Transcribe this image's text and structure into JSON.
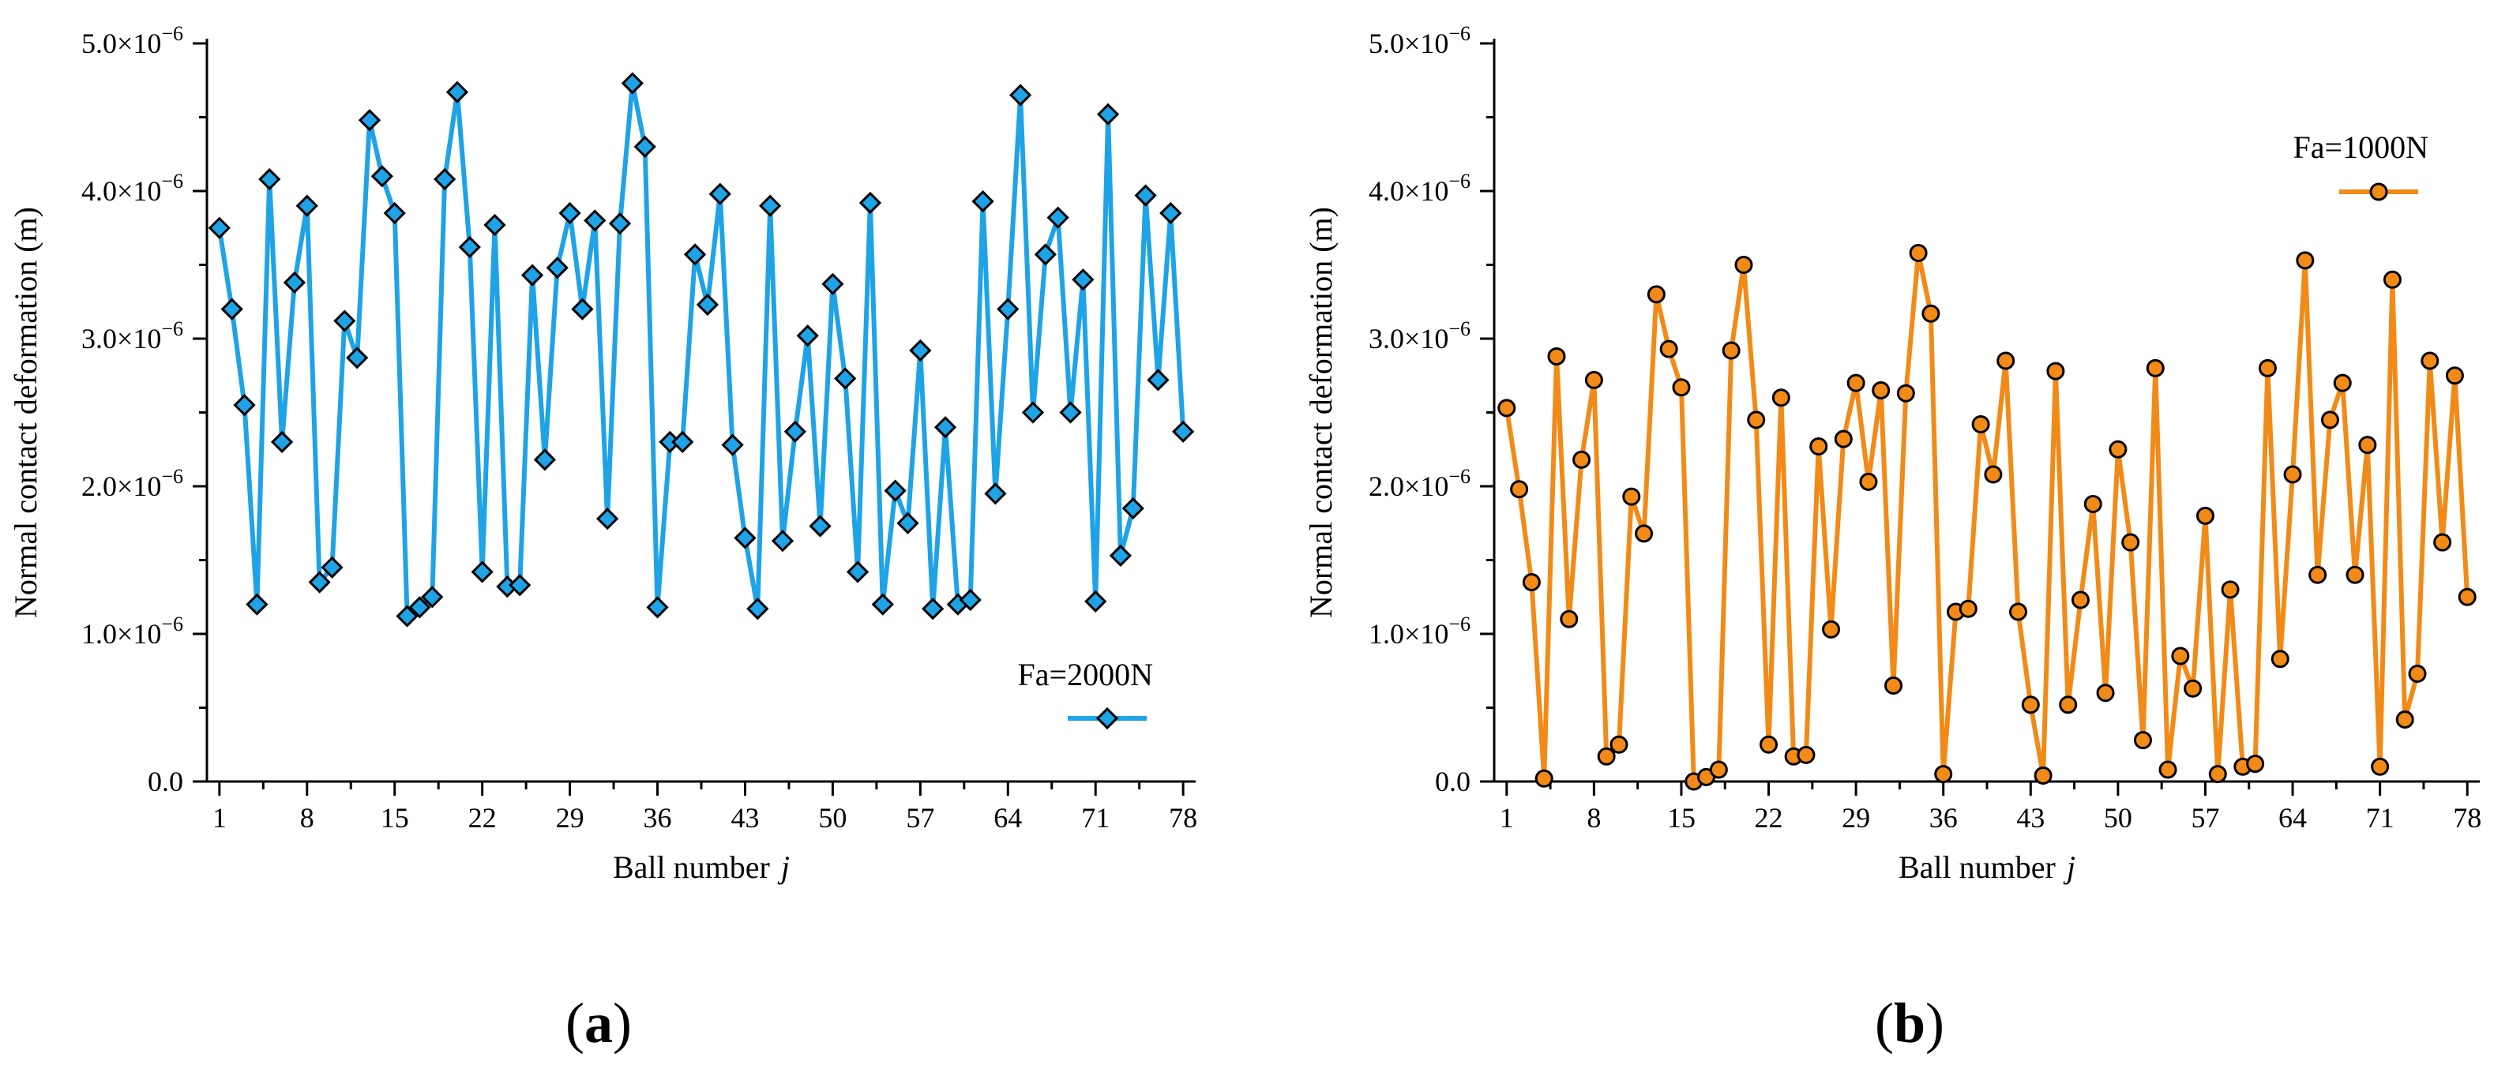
{
  "chart_data": [
    {
      "type": "line",
      "panel_label": "a",
      "xlabel": "Ball number",
      "xlabel_var": "j",
      "ylabel": "Normal contact deformation (m)",
      "xlim": [
        0,
        79
      ],
      "ylim": [
        0,
        5e-06
      ],
      "xticks": [
        1,
        8,
        15,
        22,
        29,
        36,
        43,
        50,
        57,
        64,
        71,
        78
      ],
      "yticks": [
        {
          "value": 0,
          "mantissa": "0.0",
          "exp": ""
        },
        {
          "value": 1e-06,
          "mantissa": "1.0×10",
          "exp": "−6"
        },
        {
          "value": 2e-06,
          "mantissa": "2.0×10",
          "exp": "−6"
        },
        {
          "value": 3e-06,
          "mantissa": "3.0×10",
          "exp": "−6"
        },
        {
          "value": 4e-06,
          "mantissa": "4.0×10",
          "exp": "−6"
        },
        {
          "value": 5e-06,
          "mantissa": "5.0×10",
          "exp": "−6"
        }
      ],
      "legend_position": "bottom-right",
      "grid": false,
      "series": [
        {
          "name": "Fa=2000N",
          "color": "#1ea3e6",
          "marker": "diamond",
          "x": [
            1,
            2,
            3,
            4,
            5,
            6,
            7,
            8,
            9,
            10,
            11,
            12,
            13,
            14,
            15,
            16,
            17,
            18,
            19,
            20,
            21,
            22,
            23,
            24,
            25,
            26,
            27,
            28,
            29,
            30,
            31,
            32,
            33,
            34,
            35,
            36,
            37,
            38,
            39,
            40,
            41,
            42,
            43,
            44,
            45,
            46,
            47,
            48,
            49,
            50,
            51,
            52,
            53,
            54,
            55,
            56,
            57,
            58,
            59,
            60,
            61,
            62,
            63,
            64,
            65,
            66,
            67,
            68,
            69,
            70,
            71,
            72,
            73,
            74,
            75,
            76,
            77,
            78
          ],
          "values": [
            3.75e-06,
            3.2e-06,
            2.55e-06,
            1.2e-06,
            4.08e-06,
            2.3e-06,
            3.38e-06,
            3.9e-06,
            1.35e-06,
            1.45e-06,
            3.12e-06,
            2.87e-06,
            4.48e-06,
            4.1e-06,
            3.85e-06,
            1.12e-06,
            1.18e-06,
            1.25e-06,
            4.08e-06,
            4.67e-06,
            3.62e-06,
            1.42e-06,
            3.77e-06,
            1.32e-06,
            1.33e-06,
            3.43e-06,
            2.18e-06,
            3.48e-06,
            3.85e-06,
            3.2e-06,
            3.8e-06,
            1.78e-06,
            3.78e-06,
            4.73e-06,
            4.3e-06,
            1.18e-06,
            2.3e-06,
            2.3e-06,
            3.57e-06,
            3.23e-06,
            3.98e-06,
            2.28e-06,
            1.65e-06,
            1.17e-06,
            3.9e-06,
            1.63e-06,
            2.37e-06,
            3.02e-06,
            1.73e-06,
            3.37e-06,
            2.73e-06,
            1.42e-06,
            3.92e-06,
            1.2e-06,
            1.97e-06,
            1.75e-06,
            2.92e-06,
            1.17e-06,
            2.4e-06,
            1.2e-06,
            1.23e-06,
            3.93e-06,
            1.95e-06,
            3.2e-06,
            4.65e-06,
            2.5e-06,
            3.57e-06,
            3.82e-06,
            2.5e-06,
            3.4e-06,
            1.22e-06,
            4.52e-06,
            1.53e-06,
            1.85e-06,
            3.97e-06,
            2.72e-06,
            3.85e-06,
            2.37e-06
          ]
        }
      ]
    },
    {
      "type": "line",
      "panel_label": "b",
      "xlabel": "Ball number",
      "xlabel_var": "j",
      "ylabel": "Normal contact deformation (m)",
      "xlim": [
        0,
        79
      ],
      "ylim": [
        0,
        5e-06
      ],
      "xticks": [
        1,
        8,
        15,
        22,
        29,
        36,
        43,
        50,
        57,
        64,
        71,
        78
      ],
      "yticks": [
        {
          "value": 0,
          "mantissa": "0.0",
          "exp": ""
        },
        {
          "value": 1e-06,
          "mantissa": "1.0×10",
          "exp": "−6"
        },
        {
          "value": 2e-06,
          "mantissa": "2.0×10",
          "exp": "−6"
        },
        {
          "value": 3e-06,
          "mantissa": "3.0×10",
          "exp": "−6"
        },
        {
          "value": 4e-06,
          "mantissa": "4.0×10",
          "exp": "−6"
        },
        {
          "value": 5e-06,
          "mantissa": "5.0×10",
          "exp": "−6"
        }
      ],
      "legend_position": "top-right",
      "grid": false,
      "series": [
        {
          "name": "Fa=1000N",
          "color": "#f28a17",
          "marker": "circle",
          "x": [
            1,
            2,
            3,
            4,
            5,
            6,
            7,
            8,
            9,
            10,
            11,
            12,
            13,
            14,
            15,
            16,
            17,
            18,
            19,
            20,
            21,
            22,
            23,
            24,
            25,
            26,
            27,
            28,
            29,
            30,
            31,
            32,
            33,
            34,
            35,
            36,
            37,
            38,
            39,
            40,
            41,
            42,
            43,
            44,
            45,
            46,
            47,
            48,
            49,
            50,
            51,
            52,
            53,
            54,
            55,
            56,
            57,
            58,
            59,
            60,
            61,
            62,
            63,
            64,
            65,
            66,
            67,
            68,
            69,
            70,
            71,
            72,
            73,
            74,
            75,
            76,
            77,
            78
          ],
          "values": [
            2.53e-06,
            1.98e-06,
            1.35e-06,
            2e-08,
            2.88e-06,
            1.1e-06,
            2.18e-06,
            2.72e-06,
            1.7e-07,
            2.5e-07,
            1.93e-06,
            1.68e-06,
            3.3e-06,
            2.93e-06,
            2.67e-06,
            0.0,
            3e-08,
            8e-08,
            2.92e-06,
            3.5e-06,
            2.45e-06,
            2.5e-07,
            2.6e-06,
            1.7e-07,
            1.8e-07,
            2.27e-06,
            1.03e-06,
            2.32e-06,
            2.7e-06,
            2.03e-06,
            2.65e-06,
            6.5e-07,
            2.63e-06,
            3.58e-06,
            3.17e-06,
            5e-08,
            1.15e-06,
            1.17e-06,
            2.42e-06,
            2.08e-06,
            2.85e-06,
            1.15e-06,
            5.2e-07,
            4e-08,
            2.78e-06,
            5.2e-07,
            1.23e-06,
            1.88e-06,
            6e-07,
            2.25e-06,
            1.62e-06,
            2.8e-07,
            2.8e-06,
            8e-08,
            8.5e-07,
            6.3e-07,
            1.8e-06,
            5e-08,
            1.3e-06,
            1e-07,
            1.2e-07,
            2.8e-06,
            8.3e-07,
            2.08e-06,
            3.53e-06,
            1.4e-06,
            2.45e-06,
            2.7e-06,
            1.4e-06,
            2.28e-06,
            1e-07,
            3.4e-06,
            4.2e-07,
            7.3e-07,
            2.85e-06,
            1.62e-06,
            2.75e-06,
            1.25e-06
          ]
        }
      ]
    }
  ]
}
